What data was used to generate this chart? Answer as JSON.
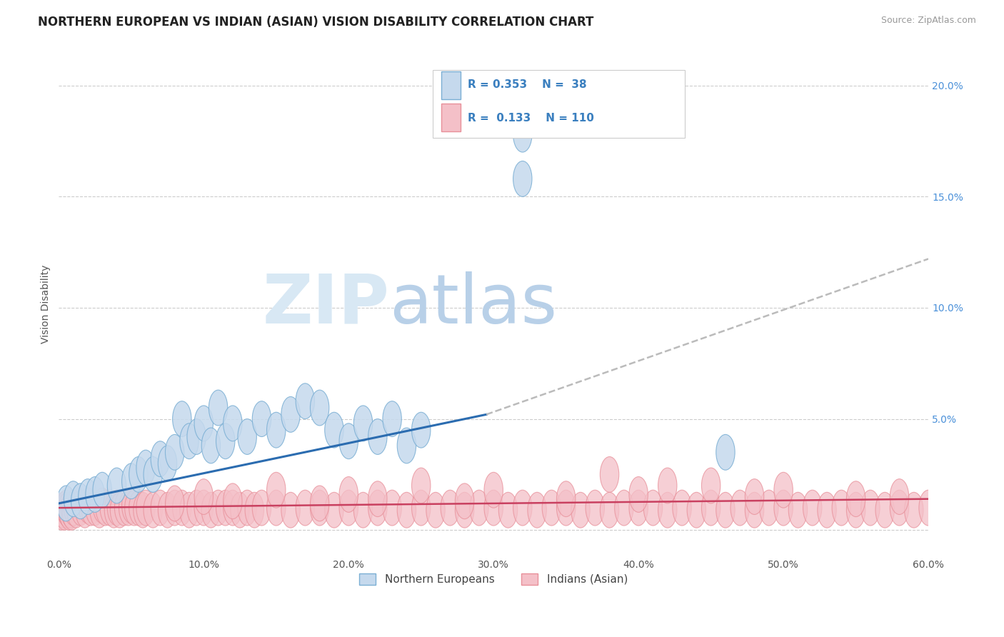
{
  "title": "NORTHERN EUROPEAN VS INDIAN (ASIAN) VISION DISABILITY CORRELATION CHART",
  "source": "Source: ZipAtlas.com",
  "ylabel": "Vision Disability",
  "xlim": [
    0.0,
    0.6
  ],
  "ylim": [
    -0.012,
    0.215
  ],
  "xtick_labels": [
    "0.0%",
    "10.0%",
    "20.0%",
    "30.0%",
    "40.0%",
    "50.0%",
    "60.0%"
  ],
  "ytick_labels": [
    "",
    "5.0%",
    "10.0%",
    "15.0%",
    "20.0%"
  ],
  "ytick_vals": [
    0.0,
    0.05,
    0.1,
    0.15,
    0.2
  ],
  "xtick_vals": [
    0.0,
    0.1,
    0.2,
    0.3,
    0.4,
    0.5,
    0.6
  ],
  "blue_edge": "#7bafd4",
  "blue_face": "#c5d9ed",
  "pink_edge": "#e8909a",
  "pink_face": "#f4c0c8",
  "trend_blue": "#2B6CB0",
  "trend_pink": "#c94060",
  "trend_dash_color": "#bbbbbb",
  "legend_R1": "0.353",
  "legend_N1": "38",
  "legend_R2": "0.133",
  "legend_N2": "110",
  "legend_label1": "Northern Europeans",
  "legend_label2": "Indians (Asian)",
  "watermark_zip": "ZIP",
  "watermark_atlas": "atlas",
  "title_fontsize": 12,
  "label_fontsize": 10,
  "tick_fontsize": 10,
  "blue_x": [
    0.005,
    0.01,
    0.015,
    0.02,
    0.025,
    0.03,
    0.04,
    0.05,
    0.055,
    0.06,
    0.065,
    0.07,
    0.075,
    0.08,
    0.085,
    0.09,
    0.095,
    0.1,
    0.105,
    0.11,
    0.115,
    0.12,
    0.13,
    0.14,
    0.15,
    0.16,
    0.17,
    0.18,
    0.19,
    0.2,
    0.21,
    0.22,
    0.23,
    0.24,
    0.25,
    0.32,
    0.32,
    0.46
  ],
  "blue_y": [
    0.012,
    0.014,
    0.013,
    0.015,
    0.016,
    0.018,
    0.02,
    0.022,
    0.025,
    0.028,
    0.025,
    0.032,
    0.03,
    0.035,
    0.05,
    0.04,
    0.042,
    0.048,
    0.038,
    0.055,
    0.04,
    0.048,
    0.042,
    0.05,
    0.045,
    0.052,
    0.058,
    0.055,
    0.045,
    0.04,
    0.048,
    0.042,
    0.05,
    0.038,
    0.045,
    0.178,
    0.158,
    0.035
  ],
  "pink_x": [
    0.002,
    0.003,
    0.004,
    0.005,
    0.006,
    0.007,
    0.008,
    0.009,
    0.01,
    0.012,
    0.015,
    0.018,
    0.02,
    0.022,
    0.025,
    0.028,
    0.03,
    0.032,
    0.035,
    0.038,
    0.04,
    0.042,
    0.045,
    0.048,
    0.05,
    0.052,
    0.055,
    0.058,
    0.06,
    0.065,
    0.07,
    0.075,
    0.08,
    0.085,
    0.09,
    0.095,
    0.1,
    0.105,
    0.11,
    0.115,
    0.12,
    0.125,
    0.13,
    0.135,
    0.14,
    0.15,
    0.16,
    0.17,
    0.18,
    0.19,
    0.2,
    0.21,
    0.22,
    0.23,
    0.24,
    0.25,
    0.26,
    0.27,
    0.28,
    0.29,
    0.3,
    0.31,
    0.32,
    0.33,
    0.34,
    0.35,
    0.36,
    0.37,
    0.38,
    0.39,
    0.4,
    0.41,
    0.42,
    0.43,
    0.44,
    0.45,
    0.46,
    0.47,
    0.48,
    0.49,
    0.5,
    0.51,
    0.52,
    0.53,
    0.54,
    0.55,
    0.56,
    0.57,
    0.58,
    0.59,
    0.6,
    0.25,
    0.3,
    0.38,
    0.42,
    0.48,
    0.1,
    0.15,
    0.2,
    0.35,
    0.45,
    0.55,
    0.08,
    0.28,
    0.5,
    0.18,
    0.4,
    0.58,
    0.12,
    0.22
  ],
  "pink_y": [
    0.008,
    0.009,
    0.008,
    0.01,
    0.009,
    0.008,
    0.009,
    0.008,
    0.01,
    0.009,
    0.01,
    0.009,
    0.011,
    0.01,
    0.01,
    0.009,
    0.011,
    0.01,
    0.01,
    0.009,
    0.01,
    0.009,
    0.01,
    0.01,
    0.011,
    0.01,
    0.01,
    0.009,
    0.01,
    0.009,
    0.01,
    0.009,
    0.01,
    0.01,
    0.009,
    0.01,
    0.01,
    0.009,
    0.01,
    0.01,
    0.01,
    0.009,
    0.01,
    0.009,
    0.01,
    0.01,
    0.009,
    0.01,
    0.01,
    0.009,
    0.01,
    0.009,
    0.01,
    0.01,
    0.009,
    0.01,
    0.009,
    0.01,
    0.009,
    0.01,
    0.01,
    0.009,
    0.01,
    0.009,
    0.01,
    0.01,
    0.009,
    0.01,
    0.009,
    0.01,
    0.01,
    0.01,
    0.009,
    0.01,
    0.009,
    0.01,
    0.009,
    0.01,
    0.009,
    0.01,
    0.01,
    0.009,
    0.01,
    0.009,
    0.01,
    0.009,
    0.01,
    0.009,
    0.01,
    0.009,
    0.01,
    0.02,
    0.018,
    0.025,
    0.02,
    0.015,
    0.015,
    0.018,
    0.016,
    0.014,
    0.02,
    0.014,
    0.012,
    0.013,
    0.018,
    0.012,
    0.016,
    0.015,
    0.013,
    0.014
  ],
  "blue_trend_x": [
    0.0,
    0.295
  ],
  "blue_trend_y": [
    0.012,
    0.052
  ],
  "dash_trend_x": [
    0.295,
    0.6
  ],
  "dash_trend_y": [
    0.052,
    0.122
  ],
  "pink_trend_x": [
    0.0,
    0.6
  ],
  "pink_trend_y": [
    0.01,
    0.014
  ]
}
